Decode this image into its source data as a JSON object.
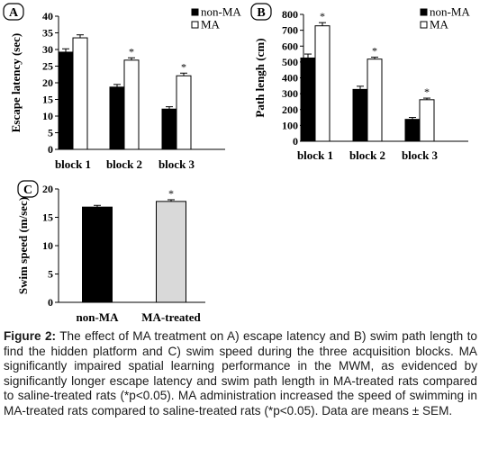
{
  "chart_data": [
    {
      "id": "A",
      "type": "bar",
      "panel_label": "A",
      "ylabel": "Escape latency (sec)",
      "xlabel": "",
      "ylim": [
        0,
        40
      ],
      "yticks": [
        0,
        5,
        10,
        15,
        20,
        25,
        30,
        35,
        40
      ],
      "categories": [
        "block 1",
        "block 2",
        "block 3"
      ],
      "series": [
        {
          "name": "non-MA",
          "color": "#000000",
          "values": [
            29.2,
            18.7,
            12.1
          ],
          "errors": [
            1.0,
            0.8,
            0.7
          ]
        },
        {
          "name": "MA",
          "color": "#ffffff",
          "values": [
            33.5,
            26.8,
            22.1
          ],
          "errors": [
            0.9,
            0.7,
            0.8
          ]
        }
      ],
      "significance": [
        "",
        "*",
        "*"
      ],
      "legend_position": "top-right",
      "grid": false
    },
    {
      "id": "B",
      "type": "bar",
      "panel_label": "B",
      "ylabel": "Path lengh (cm)",
      "xlabel": "",
      "ylim": [
        0,
        800
      ],
      "yticks": [
        0,
        100,
        200,
        300,
        400,
        500,
        600,
        700,
        800
      ],
      "categories": [
        "block 1",
        "block 2",
        "block 3"
      ],
      "series": [
        {
          "name": "non-MA",
          "color": "#000000",
          "values": [
            525,
            327,
            138
          ],
          "errors": [
            25,
            20,
            12
          ]
        },
        {
          "name": "MA",
          "color": "#ffffff",
          "values": [
            728,
            518,
            262
          ],
          "errors": [
            20,
            12,
            10
          ]
        }
      ],
      "significance": [
        "*",
        "*",
        "*"
      ],
      "legend_position": "top-right",
      "grid": false
    },
    {
      "id": "C",
      "type": "bar",
      "panel_label": "C",
      "ylabel": "Swim speed (m/sec)",
      "xlabel": "",
      "ylim": [
        0,
        20
      ],
      "yticks": [
        0,
        5,
        10,
        15,
        20
      ],
      "categories": [
        "non-MA",
        "MA-treated"
      ],
      "values": [
        16.8,
        17.8
      ],
      "errors": [
        0.3,
        0.3
      ],
      "colors": [
        "#000000",
        "#d9d9d9"
      ],
      "significance": [
        "",
        "*"
      ],
      "grid": false
    }
  ],
  "caption": {
    "label": "Figure 2:",
    "text": " The effect of MA treatment on A) escape latency and B) swim path length to find the hidden platform and C) swim speed during the three acquisition blocks. MA significantly impaired spatial learning performance in the MWM, as evidenced by significantly longer escape latency and swim path length in MA-treated rats compared to saline-treated rats (*p<0.05). MA administration increased the speed of swimming in MA-treated rats compared to saline-treated rats (*p<0.05). Data are means ± SEM."
  }
}
